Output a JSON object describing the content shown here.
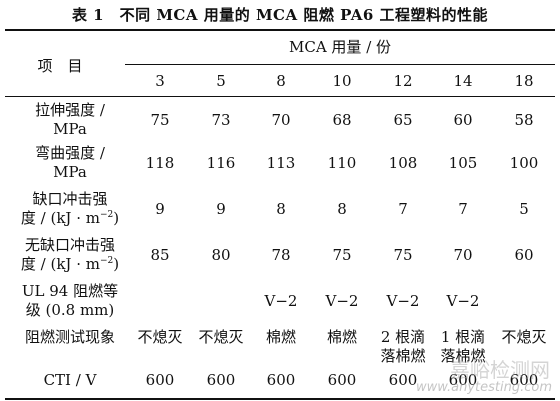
{
  "table": {
    "title": "表 1　不同 MCA 用量的 MCA 阻燃 PA6 工程塑料的性能",
    "header_item": "项　目",
    "header_group": "MCA 用量 / 份",
    "columns": [
      "3",
      "5",
      "8",
      "10",
      "12",
      "14",
      "18"
    ],
    "rows": [
      {
        "label_1": "拉伸强度 /",
        "label_2": "MPa",
        "values": [
          "75",
          "73",
          "70",
          "68",
          "65",
          "60",
          "58"
        ]
      },
      {
        "label_1": "弯曲强度 /",
        "label_2": "MPa",
        "values": [
          "118",
          "116",
          "113",
          "110",
          "108",
          "105",
          "100"
        ]
      },
      {
        "label_1": "缺口冲击强",
        "label_2_pre": "度 / (kJ · m",
        "label_2_sup": "−2",
        "label_2_post": ")",
        "values": [
          "9",
          "9",
          "8",
          "8",
          "7",
          "7",
          "5"
        ]
      },
      {
        "label_1": "无缺口冲击强",
        "label_2_pre": "度 / (kJ · m",
        "label_2_sup": "−2",
        "label_2_post": ")",
        "values": [
          "85",
          "80",
          "78",
          "75",
          "75",
          "70",
          "60"
        ]
      },
      {
        "label_1": "UL 94 阻燃等",
        "label_2": "级 (0.8 mm)",
        "values": [
          "",
          "",
          "V−2",
          "V−2",
          "V−2",
          "V−2",
          ""
        ]
      },
      {
        "label_1": "阻燃测试现象",
        "values": [
          "不熄灭",
          "不熄灭",
          "棉燃",
          "棉燃",
          "2 根滴|落棉燃",
          "1 根滴|落棉燃",
          "不熄灭"
        ]
      },
      {
        "label_1": "CTI / V",
        "values": [
          "600",
          "600",
          "600",
          "600",
          "600",
          "600",
          "600"
        ]
      }
    ]
  },
  "watermark": {
    "text_cn": "嘉峪检测网",
    "text_en": "www.anytesting.com"
  }
}
